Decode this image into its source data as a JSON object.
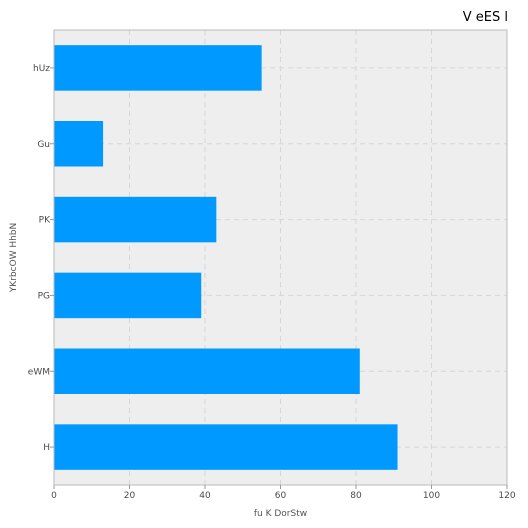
{
  "chart_data": {
    "type": "bar",
    "orientation": "horizontal",
    "title": "V eES l",
    "xlabel": "fu K DorStw",
    "ylabel": "YKrbcOW HhbN",
    "categories": [
      "hUz",
      "Gu",
      "PK",
      "PG",
      "eWM",
      "H"
    ],
    "values": [
      55,
      13,
      43,
      39,
      81,
      91
    ],
    "xlim": [
      0,
      120
    ],
    "xticks": [
      0,
      20,
      40,
      60,
      80,
      100,
      120
    ],
    "grid": true,
    "legend": "none",
    "colors": {
      "bar": "#0099ff",
      "plot_background": "#eeeeee",
      "grid": "#d6d6d6",
      "frame": "#bbbbbb"
    }
  }
}
